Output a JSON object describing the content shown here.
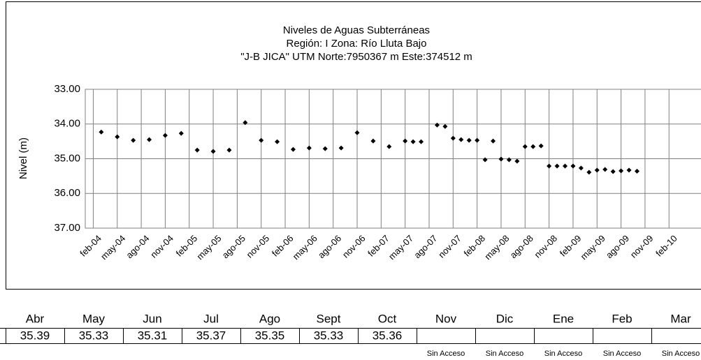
{
  "chart_data": {
    "type": "scatter",
    "title": [
      "Niveles de Aguas Subterráneas",
      "Región: I  Zona: Río Lluta Bajo",
      "\"J-B JICA\"  UTM Norte:7950367 m   Este:374512 m"
    ],
    "y_label": "Nivel (m)",
    "y_inverted": true,
    "grid": true,
    "color": "#000000",
    "x": [
      "2004-03",
      "2004-05",
      "2004-07",
      "2004-09",
      "2004-11",
      "2005-01",
      "2005-03",
      "2005-05",
      "2005-07",
      "2005-09",
      "2005-11",
      "2006-01",
      "2006-03",
      "2006-05",
      "2006-07",
      "2006-09",
      "2006-11",
      "2007-01",
      "2007-03",
      "2007-05",
      "2007-06",
      "2007-07",
      "2007-09",
      "2007-10",
      "2007-11",
      "2007-12",
      "2008-01",
      "2008-02",
      "2008-03",
      "2008-04",
      "2008-05",
      "2008-06",
      "2008-07",
      "2008-08",
      "2008-09",
      "2008-10",
      "2008-11",
      "2008-12",
      "2009-01",
      "2009-02",
      "2009-03",
      "2009-04",
      "2009-05",
      "2009-06",
      "2009-07",
      "2009-08",
      "2009-09",
      "2009-10"
    ],
    "values": [
      34.23,
      34.37,
      34.47,
      34.45,
      34.33,
      34.27,
      34.75,
      34.79,
      34.75,
      33.96,
      34.47,
      34.51,
      34.73,
      34.69,
      34.71,
      34.69,
      34.25,
      34.49,
      34.65,
      34.49,
      34.51,
      34.51,
      34.03,
      34.07,
      34.41,
      34.45,
      34.47,
      34.47,
      35.03,
      34.49,
      35.01,
      35.03,
      35.07,
      34.65,
      34.65,
      34.63,
      35.21,
      35.21,
      35.21,
      35.21,
      35.27,
      35.39,
      35.33,
      35.31,
      35.37,
      35.35,
      35.33,
      35.36
    ],
    "xlim": [
      "2004-01",
      "2010-06"
    ],
    "xticks": [
      {
        "value": "2004-02",
        "label": "feb-04"
      },
      {
        "value": "2004-05",
        "label": "may-04"
      },
      {
        "value": "2004-08",
        "label": "ago-04"
      },
      {
        "value": "2004-11",
        "label": "nov-04"
      },
      {
        "value": "2005-02",
        "label": "feb-05"
      },
      {
        "value": "2005-05",
        "label": "may-05"
      },
      {
        "value": "2005-08",
        "label": "ago-05"
      },
      {
        "value": "2005-11",
        "label": "nov-05"
      },
      {
        "value": "2006-02",
        "label": "feb-06"
      },
      {
        "value": "2006-05",
        "label": "may-06"
      },
      {
        "value": "2006-08",
        "label": "ago-06"
      },
      {
        "value": "2006-11",
        "label": "nov-06"
      },
      {
        "value": "2007-02",
        "label": "feb-07"
      },
      {
        "value": "2007-05",
        "label": "may-07"
      },
      {
        "value": "2007-08",
        "label": "ago-07"
      },
      {
        "value": "2007-11",
        "label": "nov-07"
      },
      {
        "value": "2008-02",
        "label": "feb-08"
      },
      {
        "value": "2008-05",
        "label": "may-08"
      },
      {
        "value": "2008-08",
        "label": "ago-08"
      },
      {
        "value": "2008-11",
        "label": "nov-08"
      },
      {
        "value": "2009-02",
        "label": "feb-09"
      },
      {
        "value": "2009-05",
        "label": "may-09"
      },
      {
        "value": "2009-08",
        "label": "ago-09"
      },
      {
        "value": "2009-11",
        "label": "nov-09"
      },
      {
        "value": "2010-02",
        "label": "feb-10"
      }
    ],
    "ylim": [
      33,
      37
    ],
    "yticks": [
      {
        "value": 33,
        "label": "33.00"
      },
      {
        "value": 34,
        "label": "34.00"
      },
      {
        "value": 35,
        "label": "35.00"
      },
      {
        "value": 36,
        "label": "36.00"
      },
      {
        "value": 37,
        "label": "37.00"
      }
    ]
  },
  "table": {
    "headers": [
      "Abr",
      "May",
      "Jun",
      "Jul",
      "Ago",
      "Sept",
      "Oct",
      "Nov",
      "Dic",
      "Ene",
      "Feb",
      "Mar"
    ],
    "values": [
      35.39,
      35.33,
      35.31,
      35.37,
      35.35,
      35.33,
      35.36,
      null,
      null,
      null,
      null,
      null
    ],
    "notes": [
      null,
      null,
      null,
      null,
      null,
      null,
      null,
      "Sin Acceso",
      "Sin Acceso",
      "Sin Acceso",
      "Sin Acceso",
      "Sin Acceso"
    ]
  }
}
